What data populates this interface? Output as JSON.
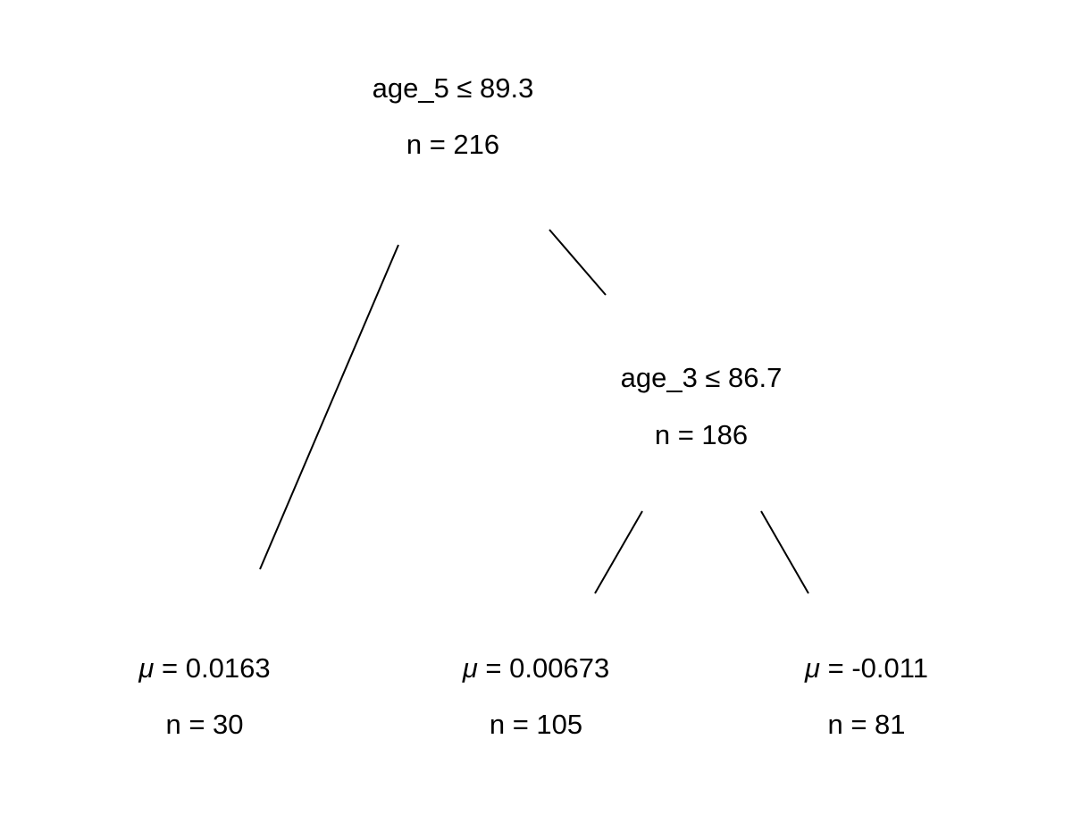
{
  "tree": {
    "root": {
      "split": "age_5 ≤ 89.3",
      "n_label": "n = 216"
    },
    "inner": {
      "split": "age_3 ≤ 86.7",
      "n_label": "n = 186"
    },
    "leaves": [
      {
        "mu_symbol": "μ",
        "mu_value": " = 0.0163",
        "n_label": "n = 30"
      },
      {
        "mu_symbol": "μ",
        "mu_value": " = 0.00673",
        "n_label": "n = 105"
      },
      {
        "mu_symbol": "μ",
        "mu_value": " = -0.011",
        "n_label": "n = 81"
      }
    ]
  }
}
